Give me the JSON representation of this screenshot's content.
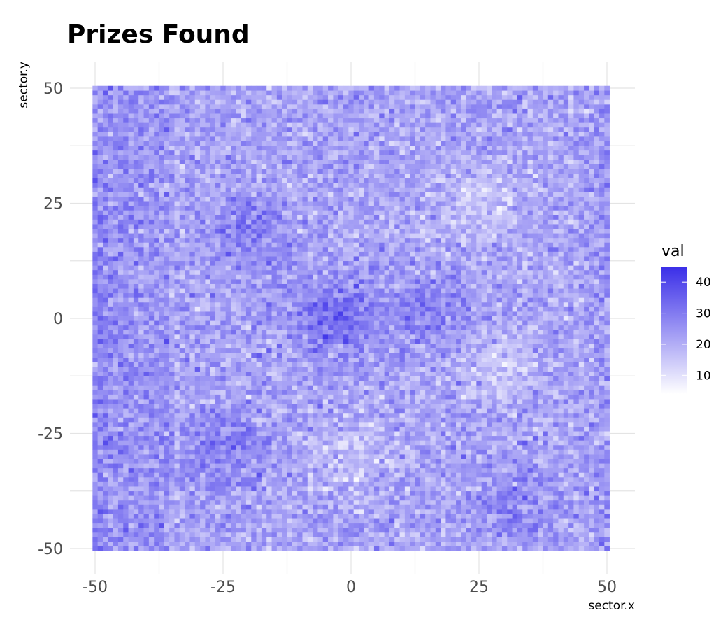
{
  "chart_data": {
    "type": "heatmap",
    "title": "Prizes Found",
    "xlabel": "sector.x",
    "ylabel": "sector.y",
    "xlim": [
      -50,
      50
    ],
    "ylim": [
      -50,
      50
    ],
    "x_ticks": [
      "-50",
      "-25",
      "0",
      "25",
      "50"
    ],
    "y_ticks": [
      "50",
      "25",
      "0",
      "-25",
      "-50"
    ],
    "x_tick_values": [
      -50,
      -25,
      0,
      25,
      50
    ],
    "y_tick_values": [
      50,
      25,
      0,
      -25,
      -50
    ],
    "cell_step": 1,
    "grid": true,
    "legend": {
      "title": "val",
      "placement": "right",
      "ticks": [
        "40",
        "30",
        "20",
        "10"
      ],
      "tick_values": [
        40,
        30,
        20,
        10
      ],
      "range": [
        4,
        45
      ],
      "low_color": "#ffffff",
      "high_color": "#3a2ee8"
    },
    "value_summary": {
      "typical_mean": 22,
      "typical_spread": 6,
      "hotspots": [
        {
          "x": -3,
          "y": 0,
          "value": 34
        },
        {
          "x": -25,
          "y": -28,
          "value": 30
        },
        {
          "x": -20,
          "y": 20,
          "value": 29
        },
        {
          "x": 32,
          "y": -40,
          "value": 28
        },
        {
          "x": 17,
          "y": 2,
          "value": 28
        }
      ],
      "coldspots": [
        {
          "x": 25,
          "y": 25,
          "value": 14
        },
        {
          "x": 30,
          "y": -10,
          "value": 14
        },
        {
          "x": 0,
          "y": -30,
          "value": 16
        }
      ]
    }
  }
}
